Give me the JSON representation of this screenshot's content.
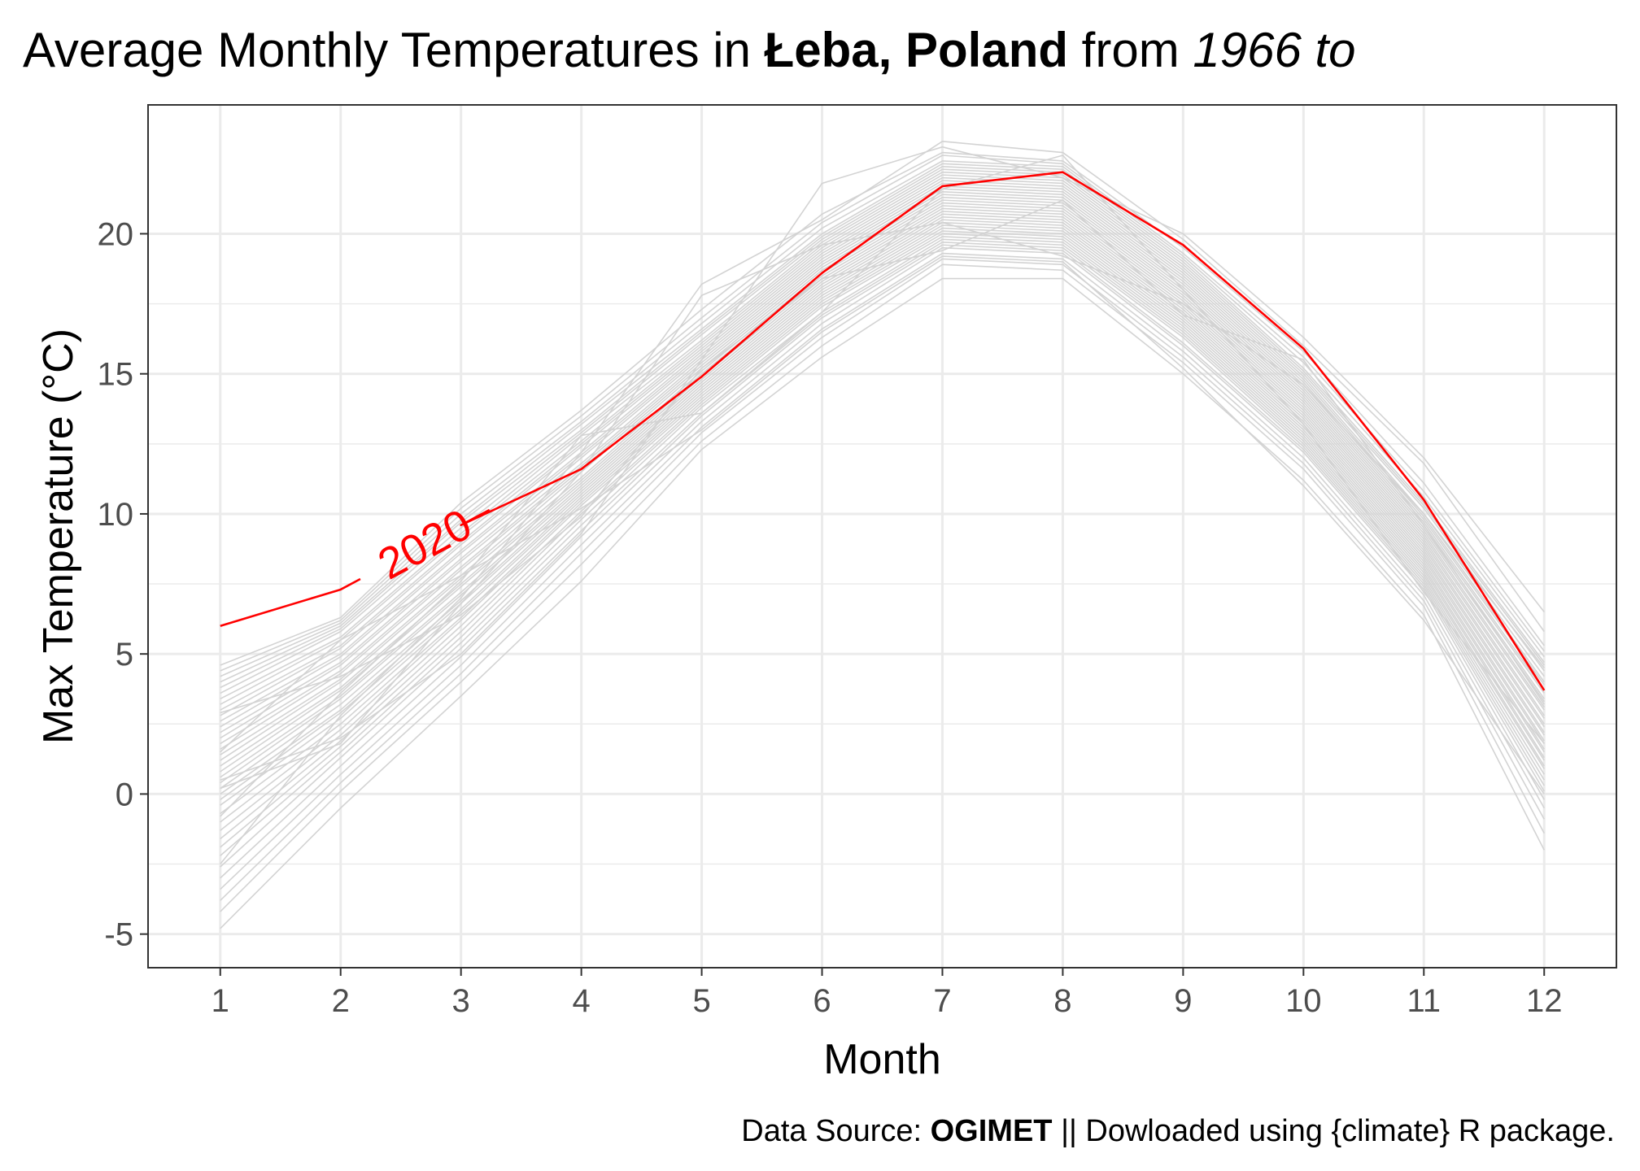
{
  "title": {
    "prefix": "Average Monthly Temperatures in ",
    "place": "Łeba, Poland",
    "middle": " from ",
    "period": "1966 to"
  },
  "caption": {
    "prefix": "Data Source: ",
    "source": "OGIMET",
    "suffix": " || Dowloaded using {climate} R package."
  },
  "colors": {
    "background_lines": "#d3d3d3",
    "highlight": "#ff0000",
    "grid": "#ebebeb",
    "panel_border": "#333333"
  },
  "chart_data": {
    "type": "line",
    "xlabel": "Month",
    "ylabel": "Max Temperature (°C)",
    "xlim": [
      0.4,
      12.6
    ],
    "ylim": [
      -6.2,
      24.6
    ],
    "x": [
      1,
      2,
      3,
      4,
      5,
      6,
      7,
      8,
      9,
      10,
      11,
      12
    ],
    "x_ticks": [
      1,
      2,
      3,
      4,
      5,
      6,
      7,
      8,
      9,
      10,
      11,
      12
    ],
    "y_ticks": [
      -5,
      0,
      5,
      10,
      15,
      20
    ],
    "grid": true,
    "legend": "none",
    "highlight_series": {
      "name": "2020",
      "values": [
        6.0,
        7.3,
        9.6,
        11.6,
        14.9,
        18.6,
        21.7,
        22.2,
        19.6,
        15.9,
        10.5,
        3.7
      ],
      "label_position_x": 2.7
    },
    "background_series": [
      {
        "values": [
          -4.8,
          -0.5,
          3.5,
          7.6,
          12.3,
          15.6,
          18.4,
          18.4,
          15.0,
          11.2,
          6.4,
          -2.0
        ]
      },
      {
        "values": [
          -4.2,
          0.1,
          4.0,
          8.2,
          12.6,
          16.0,
          18.9,
          18.7,
          15.4,
          11.6,
          6.7,
          -1.4
        ]
      },
      {
        "values": [
          -3.8,
          0.4,
          4.3,
          8.6,
          12.9,
          16.3,
          19.1,
          18.9,
          15.6,
          11.8,
          6.9,
          -0.9
        ]
      },
      {
        "values": [
          -3.4,
          0.7,
          4.6,
          8.9,
          13.1,
          16.6,
          19.3,
          19.1,
          15.8,
          12.0,
          7.1,
          -0.5
        ]
      },
      {
        "values": [
          -3.0,
          1.0,
          4.9,
          9.2,
          13.3,
          16.8,
          19.5,
          19.3,
          16.0,
          12.2,
          7.3,
          -0.2
        ]
      },
      {
        "values": [
          -2.6,
          1.3,
          5.2,
          9.4,
          13.5,
          17.0,
          19.6,
          19.4,
          16.1,
          12.3,
          7.4,
          0.1
        ]
      },
      {
        "values": [
          -2.2,
          1.5,
          5.4,
          9.6,
          13.6,
          17.1,
          19.7,
          19.5,
          16.3,
          12.4,
          7.5,
          0.3
        ]
      },
      {
        "values": [
          -1.9,
          1.7,
          5.6,
          9.8,
          13.8,
          17.2,
          19.8,
          19.6,
          16.4,
          12.5,
          7.6,
          0.5
        ]
      },
      {
        "values": [
          -1.6,
          1.9,
          5.8,
          10.0,
          13.9,
          17.4,
          19.9,
          19.7,
          16.5,
          12.6,
          7.7,
          0.7
        ]
      },
      {
        "values": [
          -1.3,
          2.1,
          6.0,
          10.1,
          14.0,
          17.5,
          20.0,
          19.8,
          16.6,
          12.7,
          7.8,
          0.9
        ]
      },
      {
        "values": [
          -1.0,
          2.3,
          6.2,
          10.3,
          14.1,
          17.6,
          20.1,
          19.9,
          16.7,
          12.8,
          7.9,
          1.0
        ]
      },
      {
        "values": [
          -0.7,
          2.5,
          6.3,
          10.4,
          14.2,
          17.7,
          20.2,
          20.0,
          16.8,
          12.9,
          8.0,
          1.2
        ]
      },
      {
        "values": [
          -0.4,
          2.7,
          6.5,
          10.5,
          14.3,
          17.8,
          20.3,
          20.1,
          16.9,
          13.0,
          8.1,
          1.3
        ]
      },
      {
        "values": [
          -0.2,
          2.9,
          6.6,
          10.6,
          14.4,
          17.9,
          20.4,
          20.2,
          17.0,
          13.1,
          8.2,
          1.5
        ]
      },
      {
        "values": [
          0.0,
          3.0,
          6.8,
          10.7,
          14.5,
          18.0,
          20.5,
          20.3,
          17.1,
          13.2,
          8.3,
          1.6
        ]
      },
      {
        "values": [
          0.2,
          3.2,
          6.9,
          10.8,
          14.6,
          18.1,
          20.6,
          20.4,
          17.2,
          13.3,
          8.4,
          1.8
        ]
      },
      {
        "values": [
          0.4,
          3.4,
          7.1,
          10.9,
          14.7,
          18.2,
          20.7,
          20.5,
          17.3,
          13.4,
          8.5,
          1.9
        ]
      },
      {
        "values": [
          0.6,
          3.5,
          7.2,
          11.0,
          14.8,
          18.3,
          20.8,
          20.6,
          17.4,
          13.5,
          8.6,
          2.1
        ]
      },
      {
        "values": [
          0.8,
          3.7,
          7.4,
          11.1,
          14.9,
          18.4,
          20.9,
          20.7,
          17.5,
          13.6,
          8.7,
          2.2
        ]
      },
      {
        "values": [
          1.0,
          3.8,
          7.5,
          11.2,
          15.0,
          18.5,
          21.0,
          20.8,
          17.6,
          13.7,
          8.8,
          2.4
        ]
      },
      {
        "values": [
          1.2,
          4.0,
          7.7,
          11.3,
          15.1,
          18.6,
          21.1,
          20.9,
          17.7,
          13.8,
          8.9,
          2.5
        ]
      },
      {
        "values": [
          1.4,
          4.1,
          7.8,
          11.5,
          15.2,
          18.7,
          21.2,
          21.0,
          17.8,
          13.9,
          9.0,
          2.7
        ]
      },
      {
        "values": [
          1.6,
          4.3,
          8.0,
          11.6,
          15.3,
          18.8,
          21.3,
          21.1,
          17.9,
          14.0,
          9.1,
          2.8
        ]
      },
      {
        "values": [
          1.8,
          4.4,
          8.1,
          11.7,
          15.4,
          18.9,
          21.4,
          21.2,
          18.0,
          14.1,
          9.2,
          3.0
        ]
      },
      {
        "values": [
          2.0,
          4.6,
          8.3,
          11.8,
          15.5,
          19.0,
          21.5,
          21.3,
          18.1,
          14.2,
          9.3,
          3.1
        ]
      },
      {
        "values": [
          2.2,
          4.7,
          8.4,
          12.0,
          15.6,
          19.1,
          21.6,
          21.4,
          18.2,
          14.3,
          9.4,
          3.3
        ]
      },
      {
        "values": [
          2.4,
          4.9,
          8.6,
          12.1,
          15.7,
          19.2,
          21.7,
          21.5,
          18.3,
          14.4,
          9.5,
          3.4
        ]
      },
      {
        "values": [
          2.6,
          5.0,
          8.7,
          12.2,
          15.8,
          19.3,
          21.8,
          21.6,
          18.4,
          14.5,
          9.6,
          3.6
        ]
      },
      {
        "values": [
          2.8,
          5.2,
          8.9,
          12.4,
          15.9,
          19.4,
          21.9,
          21.7,
          18.5,
          14.6,
          9.7,
          3.7
        ]
      },
      {
        "values": [
          3.0,
          5.3,
          9.0,
          12.5,
          16.0,
          19.5,
          22.0,
          21.8,
          18.6,
          14.7,
          9.8,
          3.9
        ]
      },
      {
        "values": [
          3.2,
          5.5,
          9.2,
          12.6,
          16.1,
          19.6,
          22.1,
          21.9,
          18.7,
          14.8,
          9.9,
          4.0
        ]
      },
      {
        "values": [
          3.4,
          5.6,
          9.3,
          12.8,
          16.2,
          19.7,
          22.2,
          22.0,
          18.8,
          14.9,
          10.0,
          4.2
        ]
      },
      {
        "values": [
          3.6,
          5.8,
          9.5,
          12.9,
          16.4,
          19.8,
          22.3,
          22.1,
          18.9,
          15.0,
          10.2,
          4.4
        ]
      },
      {
        "values": [
          3.8,
          5.9,
          9.7,
          13.0,
          16.5,
          19.9,
          22.4,
          22.2,
          19.0,
          15.1,
          10.3,
          4.6
        ]
      },
      {
        "values": [
          4.0,
          6.0,
          9.8,
          13.2,
          16.6,
          20.0,
          22.5,
          22.3,
          19.1,
          15.2,
          10.4,
          4.7
        ]
      },
      {
        "values": [
          4.2,
          6.1,
          10.0,
          13.3,
          16.8,
          20.2,
          22.6,
          22.4,
          19.2,
          15.4,
          10.6,
          4.9
        ]
      },
      {
        "values": [
          4.4,
          6.2,
          10.2,
          13.5,
          17.0,
          20.4,
          22.8,
          22.5,
          19.3,
          15.6,
          10.8,
          5.1
        ]
      },
      {
        "values": [
          4.6,
          6.3,
          10.4,
          13.7,
          17.3,
          20.7,
          22.9,
          22.6,
          19.5,
          15.8,
          11.1,
          5.3
        ]
      },
      {
        "values": [
          0.5,
          2.0,
          5.0,
          9.3,
          15.5,
          21.8,
          23.1,
          22.0,
          20.0,
          16.3,
          12.0,
          6.5
        ]
      },
      {
        "values": [
          -2.5,
          2.8,
          7.0,
          12.2,
          18.2,
          20.5,
          23.3,
          22.9,
          19.8,
          16.0,
          11.8,
          5.8
        ]
      },
      {
        "values": [
          1.5,
          5.5,
          7.8,
          10.2,
          13.0,
          16.5,
          19.2,
          19.0,
          15.2,
          11.0,
          6.2,
          0.0
        ]
      },
      {
        "values": [
          0.2,
          1.8,
          6.8,
          11.5,
          17.8,
          19.6,
          20.4,
          19.2,
          17.5,
          14.6,
          10.0,
          4.5
        ]
      },
      {
        "values": [
          -0.8,
          3.6,
          7.6,
          12.8,
          13.6,
          17.2,
          21.6,
          22.8,
          18.0,
          13.2,
          7.2,
          1.8
        ]
      },
      {
        "values": [
          2.9,
          4.2,
          6.4,
          9.9,
          15.2,
          18.4,
          19.4,
          21.2,
          17.1,
          15.5,
          9.6,
          3.2
        ]
      }
    ]
  }
}
